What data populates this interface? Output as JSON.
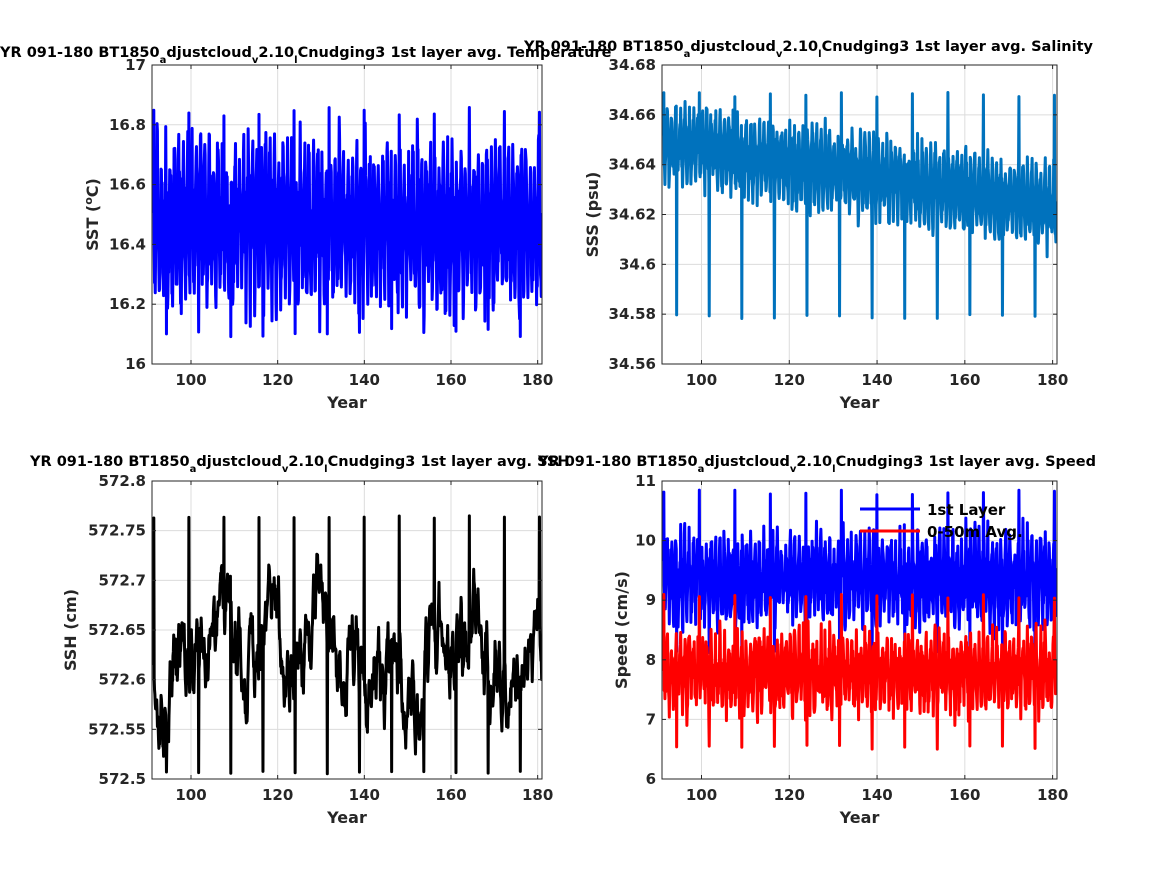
{
  "chart_data": [
    {
      "type": "line",
      "title": "YR 091-180 BT1850_adjustcloud_v2.10_lCnudging3 1st layer avg. Temperature",
      "title_parts": [
        "YR 091-180 BT1850",
        "a",
        "djustcloud",
        "v",
        "2.10",
        "l",
        "Cnudging3 1st layer avg. Temperature"
      ],
      "xlabel": "Year",
      "ylabel": "SST (",
      "ylabel_sup": "o",
      "ylabel_tail": "C)",
      "xlim": [
        91,
        181
      ],
      "ylim": [
        16,
        17
      ],
      "xticks": [
        100,
        120,
        140,
        160,
        180
      ],
      "xtick_labels": [
        "100",
        "120",
        "140",
        "160",
        "180"
      ],
      "yticks": [
        16,
        16.2,
        16.4,
        16.6,
        16.8,
        17
      ],
      "ytick_labels": [
        "16",
        "16.2",
        "16.4",
        "16.6",
        "16.8",
        "17"
      ],
      "grid": true,
      "series": [
        {
          "color": "#0000ff",
          "gen": {
            "seed": 11,
            "mean": 16.47,
            "amp": 0.21,
            "trend": -0.02,
            "noise": 0.08,
            "lo": 16.09,
            "hi": 16.86,
            "n": 1080
          }
        }
      ]
    },
    {
      "type": "line",
      "title": "YR 091-180 BT1850_adjustcloud_v2.10_lCnudging3 1st layer avg. Salinity",
      "title_parts": [
        "YR 091-180 BT1850",
        "a",
        "djustcloud",
        "v",
        "2.10",
        "l",
        "Cnudging3 1st layer avg. Salinity"
      ],
      "xlabel": "Year",
      "ylabel": "SSS (psu)",
      "xlim": [
        91,
        181
      ],
      "ylim": [
        34.56,
        34.68
      ],
      "xticks": [
        100,
        120,
        140,
        160,
        180
      ],
      "xtick_labels": [
        "100",
        "120",
        "140",
        "160",
        "180"
      ],
      "yticks": [
        34.56,
        34.58,
        34.6,
        34.62,
        34.64,
        34.66,
        34.68
      ],
      "ytick_labels": [
        "34.56",
        "34.58",
        "34.6",
        "34.62",
        "34.64",
        "34.66",
        "34.68"
      ],
      "grid": true,
      "series": [
        {
          "color": "#0072bd",
          "gen": {
            "seed": 23,
            "mean": 34.641,
            "amp": 0.013,
            "trend": -0.026,
            "noise": 0.004,
            "lo": 34.578,
            "hi": 34.669,
            "n": 1080
          }
        }
      ]
    },
    {
      "type": "line",
      "title": "YR 091-180 BT1850_adjustcloud_v2.10_lCnudging3 1st layer avg. SSH",
      "title_parts": [
        "YR 091-180 BT1850",
        "a",
        "djustcloud",
        "v",
        "2.10",
        "l",
        "Cnudging3 1st layer avg. SSH"
      ],
      "xlabel": "Year",
      "ylabel": "SSH (cm)",
      "xlim": [
        91,
        181
      ],
      "ylim": [
        572.5,
        572.8
      ],
      "xticks": [
        100,
        120,
        140,
        160,
        180
      ],
      "xtick_labels": [
        "100",
        "120",
        "140",
        "160",
        "180"
      ],
      "yticks": [
        572.5,
        572.55,
        572.6,
        572.65,
        572.7,
        572.75,
        572.8
      ],
      "ytick_labels": [
        "572.5",
        "572.55",
        "572.6",
        "572.65",
        "572.7",
        "572.75",
        "572.8"
      ],
      "grid": true,
      "series": [
        {
          "color": "#000000",
          "gen": {
            "seed": 37,
            "mean": 572.63,
            "amp": 0.02,
            "trend": 0.0,
            "noise": 0.045,
            "lo": 572.505,
            "hi": 572.765,
            "n": 1080,
            "smooth": true
          }
        }
      ]
    },
    {
      "type": "line",
      "title": "YR 091-180 BT1850_adjustcloud_v2.10_lCnudging3 1st layer avg. Speed",
      "title_parts": [
        "YR 091-180 BT1850",
        "a",
        "djustcloud",
        "v",
        "2.10",
        "l",
        "Cnudging3 1st layer avg. Speed"
      ],
      "xlabel": "Year",
      "ylabel": "Speed (cm/s)",
      "xlim": [
        91,
        181
      ],
      "ylim": [
        6,
        11
      ],
      "xticks": [
        100,
        120,
        140,
        160,
        180
      ],
      "xtick_labels": [
        "100",
        "120",
        "140",
        "160",
        "180"
      ],
      "yticks": [
        6,
        7,
        8,
        9,
        10,
        11
      ],
      "ytick_labels": [
        "6",
        "7",
        "8",
        "9",
        "10",
        "11"
      ],
      "grid": true,
      "legend": "top-right",
      "series": [
        {
          "name": "1st Layer",
          "color": "#0000ff",
          "gen": {
            "seed": 51,
            "mean": 9.35,
            "amp": 0.55,
            "trend": 0.0,
            "noise": 0.3,
            "lo": 8.1,
            "hi": 10.85,
            "n": 1080
          }
        },
        {
          "name": "0-50m Avg.",
          "color": "#ff0000",
          "gen": {
            "seed": 67,
            "mean": 7.8,
            "amp": 0.45,
            "trend": 0.0,
            "noise": 0.3,
            "lo": 6.5,
            "hi": 9.1,
            "n": 1080
          }
        }
      ]
    }
  ]
}
